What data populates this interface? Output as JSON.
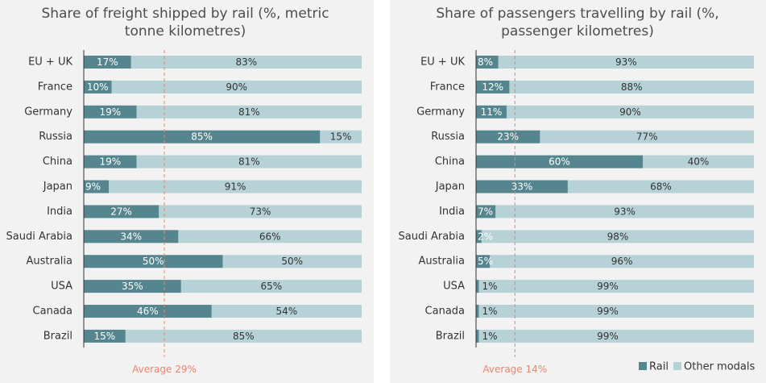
{
  "colors": {
    "rail": "#55868f",
    "other": "#b6d2d6",
    "average": "#e8866e",
    "background": "#f2f2f2",
    "rail_label": "#ffffff",
    "other_label": "#333333"
  },
  "chart_data": [
    {
      "type": "bar",
      "orientation": "horizontal",
      "stacked": true,
      "title": [
        "Share of freight shipped by rail (%, metric",
        "tonne kilometres)"
      ],
      "categories": [
        "EU + UK",
        "France",
        "Germany",
        "Russia",
        "China",
        "Japan",
        "India",
        "Saudi Arabia",
        "Australia",
        "USA",
        "Canada",
        "Brazil"
      ],
      "series": [
        {
          "name": "Rail",
          "values": [
            17,
            10,
            19,
            85,
            19,
            9,
            27,
            34,
            50,
            35,
            46,
            15
          ]
        },
        {
          "name": "Other modals",
          "values": [
            83,
            90,
            81,
            15,
            81,
            91,
            73,
            66,
            50,
            65,
            54,
            85
          ]
        }
      ],
      "value_format": "%",
      "xlim": [
        0,
        100
      ],
      "average": {
        "value": 29,
        "label": "Average 29%"
      }
    },
    {
      "type": "bar",
      "orientation": "horizontal",
      "stacked": true,
      "title": [
        "Share of passengers travelling by rail (%,",
        "passenger kilometres)"
      ],
      "categories": [
        "EU + UK",
        "France",
        "Germany",
        "Russia",
        "China",
        "Japan",
        "India",
        "Saudi Arabia",
        "Australia",
        "USA",
        "Canada",
        "Brazil"
      ],
      "series": [
        {
          "name": "Rail",
          "values": [
            8,
            12,
            11,
            23,
            60,
            33,
            7,
            2,
            5,
            1,
            1,
            1
          ]
        },
        {
          "name": "Other modals",
          "values": [
            93,
            88,
            90,
            77,
            40,
            68,
            93,
            98,
            96,
            99,
            99,
            99
          ]
        }
      ],
      "value_format": "%",
      "xlim": [
        0,
        100
      ],
      "average": {
        "value": 14,
        "label": "Average 14%"
      },
      "legend": {
        "position": "bottom-right",
        "entries": [
          "Rail",
          "Other modals"
        ]
      }
    }
  ]
}
